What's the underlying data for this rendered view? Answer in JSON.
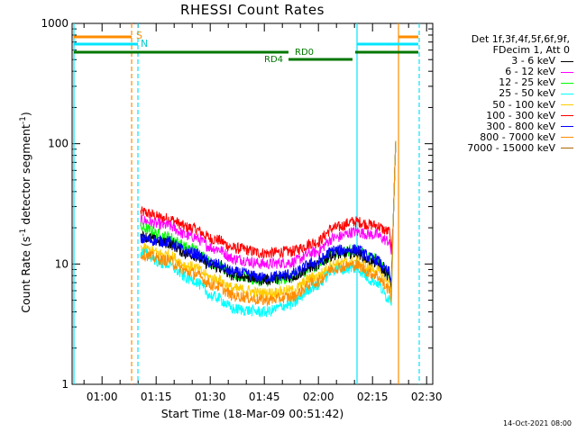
{
  "chart_data": {
    "type": "line",
    "title": "RHESSI Count Rates",
    "xlabel": "Start Time (18-Mar-09 00:51:42)",
    "ylabel_main": "Count Rate (s",
    "ylabel_exp1": "-1",
    "ylabel_mid": " detector segment",
    "ylabel_exp2": "-1",
    "ylabel_end": ")",
    "yscale": "log",
    "ylim": [
      1,
      1000
    ],
    "y_ticks": [
      "1",
      "10",
      "100",
      "1000"
    ],
    "x_range_minutes": [
      "00:51:42",
      "02:31:42"
    ],
    "x_ticks": [
      "01:00",
      "01:15",
      "01:30",
      "01:45",
      "02:00",
      "02:15",
      "02:30"
    ],
    "legend_header": [
      "Det 1f,3f,4f,5f,6f,9f,",
      "FDecim 1, Att 0"
    ],
    "series": [
      {
        "name": "3 - 6 keV",
        "color": "#000000"
      },
      {
        "name": "6 - 12 keV",
        "color": "#ff00ff"
      },
      {
        "name": "12 - 25 keV",
        "color": "#00ff00"
      },
      {
        "name": "25 - 50 keV",
        "color": "#00ffff"
      },
      {
        "name": "50 - 100 keV",
        "color": "#ffcc00"
      },
      {
        "name": "100 - 300 keV",
        "color": "#ff0000"
      },
      {
        "name": "300 - 800 keV",
        "color": "#0000ff"
      },
      {
        "name": "800 - 7000 keV",
        "color": "#ff8c00"
      },
      {
        "name": "7000 - 15000 keV",
        "color": "#aa6600"
      }
    ],
    "traces": [
      {
        "color": "#ff0000",
        "key": [
          [
            0.0,
            27
          ],
          [
            0.1,
            24
          ],
          [
            0.2,
            20
          ],
          [
            0.3,
            16
          ],
          [
            0.38,
            13.5
          ],
          [
            0.5,
            12.3
          ],
          [
            0.6,
            12.7
          ],
          [
            0.7,
            15
          ],
          [
            0.78,
            20
          ],
          [
            0.86,
            22.5
          ],
          [
            0.94,
            21
          ],
          [
            1.0,
            18.5
          ]
        ],
        "spike": [
          13,
          15
        ]
      },
      {
        "color": "#ff00ff",
        "key": [
          [
            0.0,
            23
          ],
          [
            0.1,
            21
          ],
          [
            0.2,
            17
          ],
          [
            0.3,
            13.5
          ],
          [
            0.38,
            11
          ],
          [
            0.5,
            10
          ],
          [
            0.6,
            10.3
          ],
          [
            0.7,
            12.5
          ],
          [
            0.78,
            16.5
          ],
          [
            0.86,
            18.5
          ],
          [
            0.94,
            17.5
          ],
          [
            1.0,
            15.5
          ]
        ],
        "spike": [
          12,
          14
        ]
      },
      {
        "color": "#00ff00",
        "key": [
          [
            0.0,
            20
          ],
          [
            0.1,
            17
          ],
          [
            0.2,
            13.5
          ],
          [
            0.3,
            10
          ],
          [
            0.38,
            8
          ],
          [
            0.5,
            7.2
          ],
          [
            0.6,
            7.6
          ],
          [
            0.7,
            9.5
          ],
          [
            0.78,
            12.5
          ],
          [
            0.86,
            13
          ],
          [
            0.94,
            11
          ],
          [
            1.0,
            8.5
          ]
        ],
        "spike": [
          5,
          5.5
        ]
      },
      {
        "color": "#000000",
        "key": [
          [
            0.0,
            17
          ],
          [
            0.1,
            15
          ],
          [
            0.2,
            12
          ],
          [
            0.3,
            9.5
          ],
          [
            0.38,
            8
          ],
          [
            0.5,
            7.4
          ],
          [
            0.6,
            7.8
          ],
          [
            0.7,
            9.6
          ],
          [
            0.78,
            12
          ],
          [
            0.86,
            12.3
          ],
          [
            0.94,
            10.3
          ],
          [
            1.0,
            8
          ]
        ],
        "spike": [
          6,
          6.5
        ]
      },
      {
        "color": "#0000ff",
        "key": [
          [
            0.0,
            16
          ],
          [
            0.1,
            15.5
          ],
          [
            0.2,
            12.5
          ],
          [
            0.3,
            10
          ],
          [
            0.38,
            8.5
          ],
          [
            0.5,
            7.7
          ],
          [
            0.6,
            8.2
          ],
          [
            0.7,
            10.2
          ],
          [
            0.78,
            13
          ],
          [
            0.86,
            13.2
          ],
          [
            0.94,
            11
          ],
          [
            1.0,
            8.6
          ]
        ],
        "spike": [
          7,
          8
        ]
      },
      {
        "color": "#ffcc00",
        "key": [
          [
            0.0,
            13.5
          ],
          [
            0.1,
            12
          ],
          [
            0.2,
            9.5
          ],
          [
            0.3,
            7.5
          ],
          [
            0.38,
            6.2
          ],
          [
            0.5,
            5.7
          ],
          [
            0.6,
            6
          ],
          [
            0.7,
            7.8
          ],
          [
            0.78,
            10
          ],
          [
            0.86,
            10.5
          ],
          [
            0.94,
            9
          ],
          [
            1.0,
            7
          ]
        ],
        "spike": [
          5.5,
          6
        ]
      },
      {
        "color": "#00ffff",
        "key": [
          [
            0.0,
            12.5
          ],
          [
            0.1,
            10
          ],
          [
            0.2,
            7.5
          ],
          [
            0.3,
            5.3
          ],
          [
            0.38,
            4.2
          ],
          [
            0.5,
            4
          ],
          [
            0.6,
            4.6
          ],
          [
            0.7,
            6.5
          ],
          [
            0.78,
            9
          ],
          [
            0.86,
            9.2
          ],
          [
            0.94,
            7.2
          ],
          [
            1.0,
            5.2
          ]
        ],
        "spike": [
          4.5,
          5
        ]
      },
      {
        "color": "#ff8c00",
        "key": [
          [
            0.0,
            12
          ],
          [
            0.1,
            10.8
          ],
          [
            0.2,
            8.5
          ],
          [
            0.3,
            6.6
          ],
          [
            0.38,
            5.4
          ],
          [
            0.5,
            5
          ],
          [
            0.6,
            5.3
          ],
          [
            0.7,
            7
          ],
          [
            0.78,
            9.3
          ],
          [
            0.86,
            9.8
          ],
          [
            0.94,
            8.2
          ],
          [
            1.0,
            6.2
          ]
        ],
        "spike": [
          4.8,
          5.3
        ]
      }
    ],
    "flags": {
      "S_label": "S",
      "N_label": "N",
      "RD0_label": "RD0",
      "RD4_label": "RD4"
    },
    "timestamp": "14-Oct-2021 08:00"
  }
}
